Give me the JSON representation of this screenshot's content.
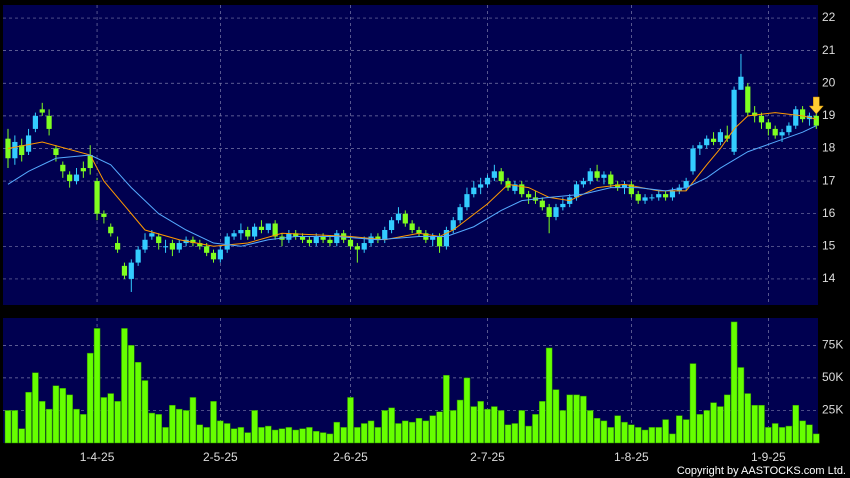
{
  "chart_data": [
    {
      "type": "candlestick",
      "up_color": "#33ccff",
      "down_color": "#80ff20",
      "background": "#000050",
      "ylim": [
        13.2,
        22.4
      ],
      "yticks": [
        14,
        15,
        16,
        17,
        18,
        19,
        20,
        21,
        22
      ],
      "grid": true,
      "ohlc": [
        [
          18.3,
          18.6,
          17.4,
          17.7
        ],
        [
          17.7,
          18.4,
          17.5,
          18.2
        ],
        [
          18.1,
          18.3,
          17.6,
          17.8
        ],
        [
          17.9,
          18.6,
          17.8,
          18.4
        ],
        [
          18.6,
          19.1,
          18.5,
          19.0
        ],
        [
          19.2,
          19.4,
          19.0,
          19.1
        ],
        [
          19.0,
          19.2,
          18.4,
          18.6
        ],
        [
          18.0,
          18.1,
          17.6,
          17.8
        ],
        [
          17.5,
          17.6,
          17.1,
          17.3
        ],
        [
          17.2,
          17.3,
          16.8,
          17.0
        ],
        [
          17.0,
          17.4,
          16.9,
          17.2
        ],
        [
          17.4,
          17.6,
          17.1,
          17.3
        ],
        [
          17.8,
          18.1,
          17.2,
          17.4
        ],
        [
          17.0,
          17.1,
          15.8,
          16.0
        ],
        [
          16.0,
          16.1,
          15.7,
          15.9
        ],
        [
          15.6,
          15.7,
          15.3,
          15.4
        ],
        [
          15.1,
          15.3,
          14.8,
          14.9
        ],
        [
          14.4,
          14.5,
          14.0,
          14.1
        ],
        [
          14.0,
          14.6,
          13.6,
          14.5
        ],
        [
          14.5,
          15.0,
          14.4,
          14.9
        ],
        [
          14.9,
          15.4,
          14.8,
          15.2
        ],
        [
          15.3,
          15.5,
          15.2,
          15.4
        ],
        [
          15.3,
          15.4,
          14.9,
          15.1
        ],
        [
          15.0,
          15.2,
          14.8,
          15.0
        ],
        [
          15.1,
          15.2,
          14.7,
          14.9
        ],
        [
          14.9,
          15.2,
          14.8,
          15.1
        ],
        [
          15.1,
          15.3,
          15.0,
          15.2
        ],
        [
          15.2,
          15.3,
          15.0,
          15.1
        ],
        [
          15.1,
          15.2,
          14.9,
          15.0
        ],
        [
          15.0,
          15.1,
          14.7,
          14.8
        ],
        [
          14.8,
          14.9,
          14.5,
          14.6
        ],
        [
          14.6,
          15.0,
          14.5,
          14.9
        ],
        [
          14.9,
          15.4,
          14.8,
          15.3
        ],
        [
          15.3,
          15.5,
          15.2,
          15.4
        ],
        [
          15.4,
          15.7,
          15.2,
          15.5
        ],
        [
          15.5,
          15.6,
          15.2,
          15.3
        ],
        [
          15.3,
          15.7,
          15.2,
          15.6
        ],
        [
          15.6,
          15.8,
          15.4,
          15.5
        ],
        [
          15.5,
          15.7,
          15.4,
          15.7
        ],
        [
          15.7,
          15.8,
          15.2,
          15.3
        ],
        [
          15.3,
          15.4,
          15.0,
          15.2
        ],
        [
          15.2,
          15.5,
          15.1,
          15.4
        ],
        [
          15.4,
          15.5,
          15.2,
          15.3
        ],
        [
          15.3,
          15.4,
          15.1,
          15.2
        ],
        [
          15.2,
          15.3,
          15.0,
          15.1
        ],
        [
          15.1,
          15.4,
          15.0,
          15.3
        ],
        [
          15.3,
          15.4,
          15.1,
          15.2
        ],
        [
          15.2,
          15.3,
          15.0,
          15.1
        ],
        [
          15.1,
          15.5,
          15.0,
          15.4
        ],
        [
          15.4,
          15.5,
          15.1,
          15.2
        ],
        [
          15.2,
          15.3,
          14.9,
          15.0
        ],
        [
          15.0,
          15.1,
          14.5,
          14.9
        ],
        [
          14.9,
          15.3,
          14.8,
          15.1
        ],
        [
          15.1,
          15.4,
          15.0,
          15.3
        ],
        [
          15.3,
          15.4,
          15.1,
          15.2
        ],
        [
          15.2,
          15.6,
          15.1,
          15.5
        ],
        [
          15.5,
          15.9,
          15.4,
          15.8
        ],
        [
          15.8,
          16.2,
          15.7,
          16.0
        ],
        [
          16.0,
          16.1,
          15.6,
          15.7
        ],
        [
          15.7,
          15.8,
          15.4,
          15.5
        ],
        [
          15.5,
          15.6,
          15.3,
          15.4
        ],
        [
          15.4,
          15.5,
          15.1,
          15.2
        ],
        [
          15.2,
          15.4,
          15.0,
          15.3
        ],
        [
          15.3,
          15.4,
          14.8,
          15.0
        ],
        [
          15.0,
          15.6,
          14.9,
          15.5
        ],
        [
          15.5,
          15.9,
          15.4,
          15.8
        ],
        [
          15.8,
          16.3,
          15.7,
          16.2
        ],
        [
          16.2,
          16.8,
          16.1,
          16.6
        ],
        [
          16.6,
          17.0,
          16.5,
          16.8
        ],
        [
          16.8,
          17.1,
          16.6,
          16.9
        ],
        [
          16.9,
          17.2,
          16.8,
          17.1
        ],
        [
          17.1,
          17.5,
          17.0,
          17.3
        ],
        [
          17.3,
          17.4,
          16.9,
          17.0
        ],
        [
          17.0,
          17.1,
          16.7,
          16.8
        ],
        [
          16.7,
          17.0,
          16.6,
          16.9
        ],
        [
          16.9,
          17.0,
          16.5,
          16.6
        ],
        [
          16.6,
          16.7,
          16.3,
          16.5
        ],
        [
          16.5,
          16.7,
          16.3,
          16.4
        ],
        [
          16.4,
          16.5,
          16.1,
          16.2
        ],
        [
          16.2,
          16.3,
          15.4,
          15.9
        ],
        [
          15.9,
          16.3,
          15.8,
          16.2
        ],
        [
          16.2,
          16.5,
          16.1,
          16.3
        ],
        [
          16.3,
          16.6,
          16.2,
          16.5
        ],
        [
          16.5,
          17.0,
          16.4,
          16.9
        ],
        [
          16.9,
          17.1,
          16.8,
          17.0
        ],
        [
          17.0,
          17.4,
          16.9,
          17.3
        ],
        [
          17.3,
          17.5,
          17.0,
          17.1
        ],
        [
          17.1,
          17.3,
          16.9,
          17.2
        ],
        [
          17.2,
          17.3,
          16.8,
          16.9
        ],
        [
          16.9,
          17.0,
          16.7,
          16.8
        ],
        [
          16.8,
          17.0,
          16.6,
          16.9
        ],
        [
          16.9,
          17.0,
          16.5,
          16.6
        ],
        [
          16.6,
          16.7,
          16.3,
          16.4
        ],
        [
          16.4,
          16.6,
          16.3,
          16.5
        ],
        [
          16.5,
          16.6,
          16.4,
          16.5
        ],
        [
          16.5,
          16.7,
          16.4,
          16.6
        ],
        [
          16.6,
          16.7,
          16.4,
          16.5
        ],
        [
          16.5,
          16.8,
          16.4,
          16.7
        ],
        [
          16.7,
          16.9,
          16.6,
          16.8
        ],
        [
          16.8,
          17.1,
          16.7,
          17.0
        ],
        [
          17.3,
          18.1,
          17.2,
          18.0
        ],
        [
          18.0,
          18.2,
          17.8,
          18.1
        ],
        [
          18.1,
          18.4,
          18.0,
          18.3
        ],
        [
          18.3,
          18.5,
          18.1,
          18.2
        ],
        [
          18.2,
          18.6,
          18.1,
          18.5
        ],
        [
          18.4,
          18.7,
          18.2,
          18.3
        ],
        [
          17.9,
          19.9,
          17.8,
          19.8
        ],
        [
          19.8,
          20.9,
          19.8,
          20.2
        ],
        [
          19.9,
          20.0,
          19.0,
          19.1
        ],
        [
          19.1,
          19.3,
          18.8,
          19.0
        ],
        [
          19.0,
          19.1,
          18.6,
          18.8
        ],
        [
          18.8,
          18.9,
          18.4,
          18.6
        ],
        [
          18.6,
          18.7,
          18.3,
          18.4
        ],
        [
          18.4,
          18.6,
          18.2,
          18.5
        ],
        [
          18.5,
          18.8,
          18.4,
          18.7
        ],
        [
          18.7,
          19.3,
          18.6,
          19.2
        ],
        [
          19.2,
          19.3,
          18.8,
          18.9
        ],
        [
          18.9,
          19.1,
          18.7,
          19.0
        ],
        [
          19.0,
          19.2,
          18.6,
          18.7
        ]
      ],
      "lines": [
        {
          "color": "#ff9900",
          "x": [
            0,
            5,
            12,
            14,
            20,
            25,
            30,
            35,
            40,
            50,
            55,
            60,
            63,
            65,
            70,
            73,
            76,
            79,
            82,
            86,
            90,
            95,
            99,
            102,
            104,
            106,
            108,
            112,
            116,
            118
          ],
          "values": [
            18.0,
            18.2,
            17.8,
            17.0,
            15.5,
            15.2,
            15.0,
            15.1,
            15.4,
            15.3,
            15.2,
            15.4,
            15.3,
            15.5,
            16.3,
            16.9,
            16.8,
            16.5,
            16.4,
            16.8,
            16.9,
            16.7,
            16.7,
            17.5,
            18.0,
            18.6,
            19.0,
            19.1,
            19.0,
            18.9
          ]
        },
        {
          "color": "#55aaff",
          "x": [
            0,
            3,
            7,
            12,
            15,
            18,
            22,
            26,
            30,
            34,
            38,
            42,
            48,
            54,
            60,
            64,
            68,
            72,
            75,
            79,
            84,
            88,
            92,
            96,
            99,
            102,
            104,
            108,
            112,
            116,
            118
          ],
          "values": [
            16.9,
            17.3,
            17.7,
            17.8,
            17.5,
            16.8,
            16.0,
            15.5,
            15.1,
            15.0,
            15.2,
            15.3,
            15.3,
            15.2,
            15.3,
            15.3,
            15.6,
            16.1,
            16.4,
            16.5,
            16.6,
            16.8,
            16.8,
            16.7,
            16.8,
            17.1,
            17.4,
            17.9,
            18.2,
            18.5,
            18.7
          ]
        }
      ]
    },
    {
      "type": "bar",
      "color": "#66ff00",
      "background": "#000050",
      "ylim": [
        0,
        96000
      ],
      "yticks": [
        {
          "value": 25000,
          "label": "25K"
        },
        {
          "value": 50000,
          "label": "50K"
        },
        {
          "value": 75000,
          "label": "75K"
        }
      ],
      "grid": true,
      "categories": [
        null,
        null,
        null,
        null,
        null,
        null,
        null,
        null,
        null,
        null,
        null,
        null,
        null,
        "1-4-25",
        null,
        null,
        null,
        null,
        null,
        null,
        null,
        null,
        null,
        null,
        null,
        null,
        null,
        null,
        null,
        null,
        null,
        "2-5-25",
        null,
        null,
        null,
        null,
        null,
        null,
        null,
        null,
        null,
        null,
        null,
        null,
        null,
        null,
        null,
        null,
        null,
        null,
        "2-6-25",
        null,
        null,
        null,
        null,
        null,
        null,
        null,
        null,
        null,
        null,
        null,
        null,
        null,
        null,
        null,
        null,
        null,
        null,
        null,
        "2-7-25",
        null,
        null,
        null,
        null,
        null,
        null,
        null,
        null,
        null,
        null,
        null,
        null,
        null,
        null,
        null,
        null,
        null,
        null,
        null,
        null,
        "1-8-25",
        null,
        null,
        null,
        null,
        null,
        null,
        null,
        null,
        null,
        null,
        null,
        null,
        null,
        null,
        null,
        null,
        null,
        null,
        null,
        "1-9-25",
        null,
        null,
        null,
        null,
        null,
        null,
        null
      ],
      "values": [
        25000,
        25000,
        11000,
        39000,
        54000,
        32000,
        26000,
        44000,
        42000,
        37000,
        26000,
        22000,
        69000,
        88000,
        35000,
        38000,
        32000,
        88000,
        75000,
        62000,
        48000,
        23000,
        22000,
        12000,
        29000,
        26000,
        25000,
        35000,
        14000,
        12000,
        32000,
        17000,
        15000,
        11000,
        12000,
        8000,
        25000,
        12000,
        13000,
        10000,
        11000,
        12000,
        10000,
        11000,
        12000,
        9000,
        8000,
        7000,
        16000,
        12000,
        35000,
        12000,
        15000,
        17000,
        12000,
        25000,
        27000,
        15000,
        17000,
        16000,
        19000,
        17000,
        21000,
        24000,
        52000,
        25000,
        33000,
        50000,
        28000,
        32000,
        26000,
        28000,
        25000,
        14000,
        15000,
        25000,
        13000,
        22000,
        32000,
        73000,
        41000,
        25000,
        37000,
        37000,
        36000,
        25000,
        19000,
        17000,
        12000,
        21000,
        16000,
        14000,
        12000,
        10000,
        12000,
        12000,
        18000,
        7000,
        21000,
        18000,
        61000,
        22000,
        25000,
        31000,
        28000,
        37000,
        93000,
        58000,
        38000,
        29000,
        29000,
        12000,
        15000,
        12000,
        13000,
        29000,
        17000,
        14000,
        7000
      ]
    }
  ],
  "footer": "Copyright by AASTOCKS.com Ltd."
}
